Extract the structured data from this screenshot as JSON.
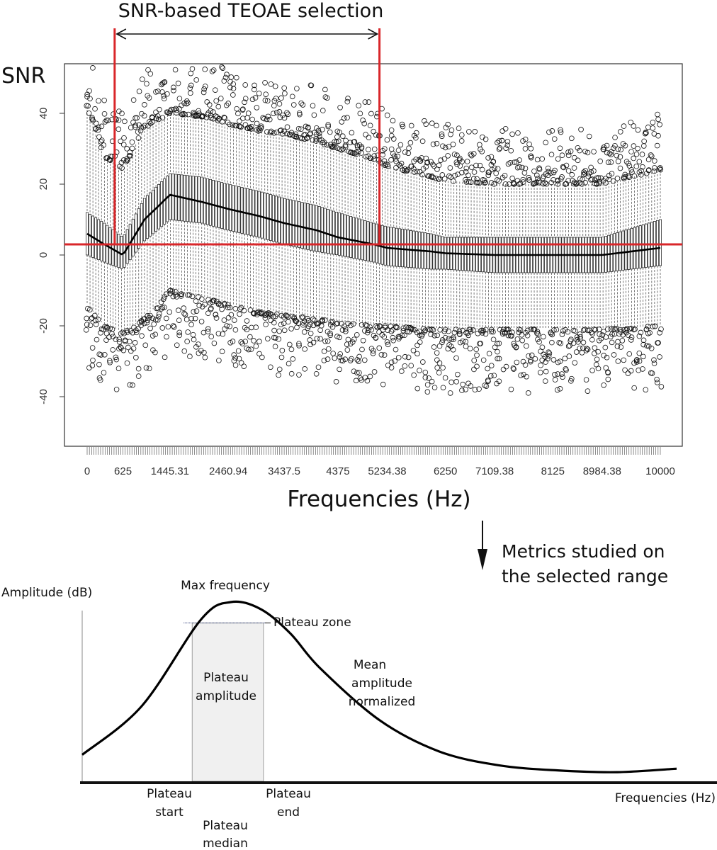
{
  "chart_data": [
    {
      "type": "box",
      "title": "SNR-based TEOAE selection",
      "ylabel": "SNR",
      "xlabel": "Frequencies (Hz)",
      "ylim": [
        -55,
        55
      ],
      "xlim": [
        0,
        10000
      ],
      "yticks": [
        40,
        20,
        0,
        -20,
        -40
      ],
      "ytick_labels": [
        "40",
        "20",
        "0",
        "-20",
        "-40"
      ],
      "xticks": [
        0,
        625,
        1445.31,
        2460.94,
        3437.5,
        4375,
        5234.38,
        6250,
        7109.38,
        8125,
        8984.38,
        10000
      ],
      "xtick_labels": [
        "0",
        "625",
        "1445.31",
        "2460.94",
        "3437.5",
        "4375",
        "5234.38",
        "6250",
        "7109.38",
        "8125",
        "8984.38",
        "10000"
      ],
      "threshold_snr": 3,
      "selection_range_hz": [
        480,
        5100
      ],
      "series": [
        {
          "name": "upper whisker / outliers",
          "x": [
            0,
            300,
            625,
            1000,
            1445.31,
            2000,
            2460.94,
            3000,
            3437.5,
            4000,
            4375,
            5000,
            5234.38,
            6000,
            6250,
            7109.38,
            8125,
            8984.38,
            10000
          ],
          "values": [
            42,
            28,
            24,
            36,
            40,
            39,
            37,
            35,
            34,
            32,
            30,
            27,
            25,
            22,
            21,
            20,
            20,
            20,
            24
          ]
        },
        {
          "name": "Q3",
          "x": [
            0,
            300,
            625,
            1000,
            1445.31,
            2000,
            2460.94,
            3000,
            3437.5,
            4000,
            4375,
            5000,
            5234.38,
            6000,
            6250,
            7109.38,
            8125,
            8984.38,
            10000
          ],
          "values": [
            12,
            9,
            5,
            16,
            23,
            22,
            20,
            18,
            16,
            14,
            12,
            9,
            8,
            6,
            5,
            5,
            5,
            5,
            10
          ]
        },
        {
          "name": "median",
          "x": [
            0,
            300,
            625,
            1000,
            1445.31,
            2000,
            2460.94,
            3000,
            3437.5,
            4000,
            4375,
            5000,
            5234.38,
            6000,
            6250,
            7109.38,
            8125,
            8984.38,
            10000
          ],
          "values": [
            6,
            3,
            0,
            10,
            17,
            15,
            13,
            11,
            9,
            7,
            5,
            3,
            2,
            1,
            0.5,
            0,
            0,
            0,
            2
          ]
        },
        {
          "name": "Q1",
          "x": [
            0,
            300,
            625,
            1000,
            1445.31,
            2000,
            2460.94,
            3000,
            3437.5,
            4000,
            4375,
            5000,
            5234.38,
            6000,
            6250,
            7109.38,
            8125,
            8984.38,
            10000
          ],
          "values": [
            0,
            -2,
            -4,
            4,
            10,
            9,
            7,
            5,
            3,
            1,
            0,
            -2,
            -3,
            -4,
            -4,
            -5,
            -5,
            -5,
            -3
          ]
        },
        {
          "name": "lower whisker / outliers",
          "x": [
            0,
            300,
            625,
            1000,
            1445.31,
            2000,
            2460.94,
            3000,
            3437.5,
            4000,
            4375,
            5000,
            5234.38,
            6000,
            6250,
            7109.38,
            8125,
            8984.38,
            10000
          ],
          "values": [
            -14,
            -20,
            -22,
            -18,
            -10,
            -12,
            -14,
            -16,
            -17,
            -18,
            -19,
            -20,
            -20,
            -21,
            -21,
            -21,
            -21,
            -21,
            -20
          ]
        }
      ]
    },
    {
      "type": "line",
      "ylabel": "Amplitude (dB)",
      "xlabel": "Frequencies (Hz)",
      "annotation_title": "Metrics studied on the selected range",
      "series": [
        {
          "name": "amplitude profile",
          "x": [
            0,
            0.1,
            0.2,
            0.25,
            0.3,
            0.35,
            0.4,
            0.5,
            0.6,
            0.7,
            0.8,
            0.9,
            1.0
          ],
          "values": [
            0.12,
            0.4,
            0.9,
            1.0,
            0.96,
            0.82,
            0.62,
            0.32,
            0.14,
            0.06,
            0.03,
            0.02,
            0.04
          ]
        }
      ],
      "plateau_start_x": 0.185,
      "plateau_end_x": 0.305,
      "plateau_level": 0.88
    }
  ],
  "labels": {
    "selection_title": "SNR-based TEOAE selection",
    "snr_axis": "SNR",
    "freq_axis_top": "Frequencies (Hz)",
    "metrics_line1": "Metrics studied on",
    "metrics_line2": "the selected range",
    "amplitude_axis": "Amplitude (dB)",
    "max_frequency": "Max frequency",
    "plateau_zone": "Plateau zone",
    "plateau_amp_1": "Plateau",
    "plateau_amp_2": "amplitude",
    "mean_amp_1": "Mean",
    "mean_amp_2": "amplitude",
    "mean_amp_3": "normalized",
    "plateau_start_1": "Plateau",
    "plateau_start_2": "start",
    "plateau_end_1": "Plateau",
    "plateau_end_2": "end",
    "plateau_median_1": "Plateau",
    "plateau_median_2": "median",
    "freq_axis_bottom": "Frequencies (Hz)"
  },
  "colors": {
    "selection": "#d9262a",
    "ink": "#111111",
    "plateau_fill": "#f0f0f0"
  }
}
